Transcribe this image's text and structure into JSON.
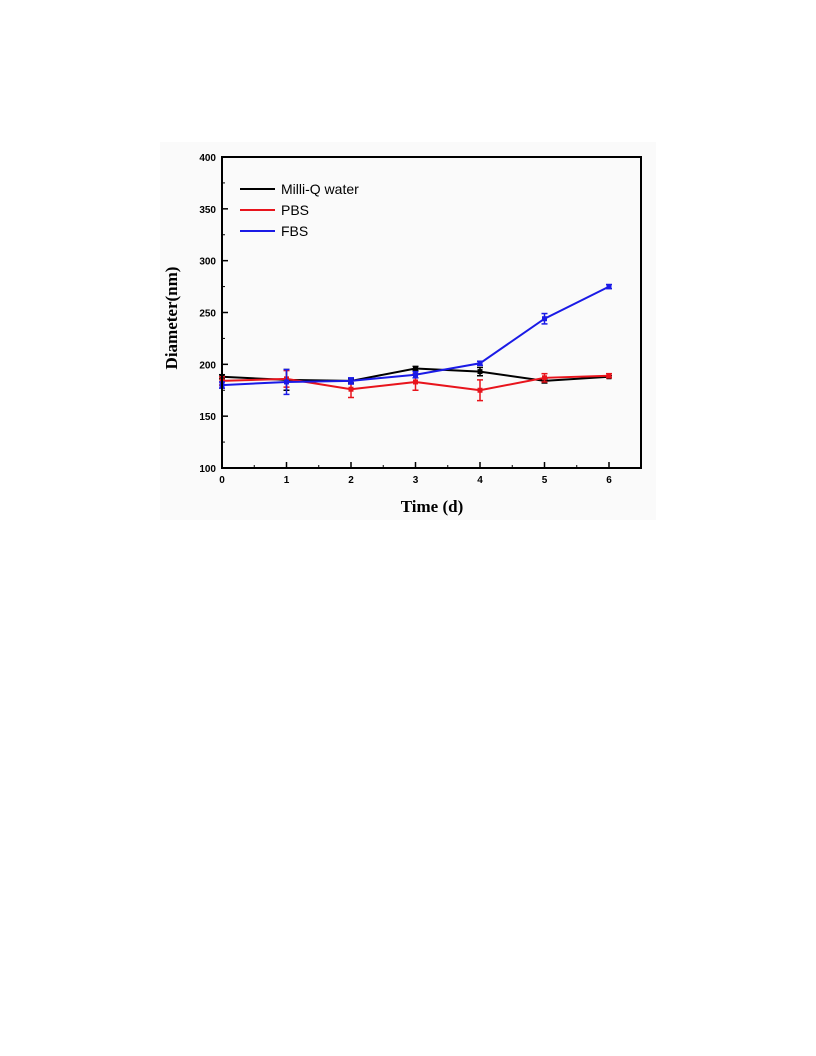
{
  "chart_data": {
    "type": "line",
    "xlabel": "Time (d)",
    "ylabel": "Diameter(nm)",
    "xlim": [
      0,
      6.5
    ],
    "ylim": [
      100,
      400
    ],
    "x_ticks": [
      0,
      1,
      2,
      3,
      4,
      5,
      6
    ],
    "y_ticks": [
      100,
      150,
      200,
      250,
      300,
      350,
      400
    ],
    "grid": false,
    "legend_position": "top-left",
    "x": [
      0,
      1,
      2,
      3,
      4,
      5,
      6
    ],
    "series": [
      {
        "name": "Milli-Q water",
        "color": "#000000",
        "values": [
          188,
          185,
          184,
          196,
          193,
          184,
          188
        ],
        "errors": [
          2,
          10,
          2,
          2,
          4,
          2,
          1
        ]
      },
      {
        "name": "PBS",
        "color": "#e8141c",
        "values": [
          184,
          186,
          176,
          183,
          175,
          187,
          189
        ],
        "errors": [
          4,
          8,
          8,
          8,
          10,
          4,
          2
        ]
      },
      {
        "name": "FBS",
        "color": "#1a1ae6",
        "values": [
          180,
          183,
          184,
          190,
          201,
          244,
          275
        ],
        "errors": [
          3,
          12,
          3,
          3,
          2,
          5,
          2
        ]
      }
    ]
  }
}
